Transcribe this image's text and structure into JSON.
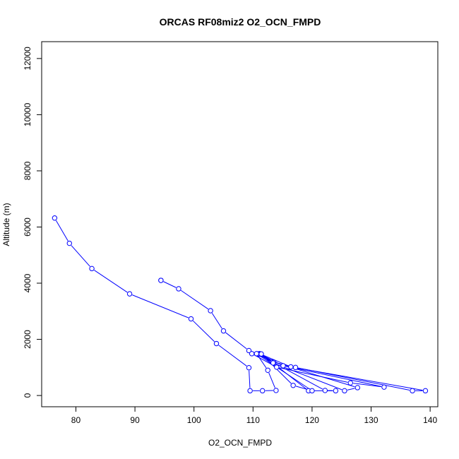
{
  "chart_data": {
    "type": "line",
    "title": "ORCAS RF08miz2 O2_OCN_FMPD",
    "xlabel": "O2_OCN_FMPD",
    "ylabel": "Altitude (m)",
    "xlim": [
      74.2,
      141.3
    ],
    "ylim": [
      -400,
      12600
    ],
    "xticks": [
      80,
      90,
      100,
      110,
      120,
      130,
      140
    ],
    "yticks": [
      0,
      2000,
      4000,
      6000,
      8000,
      10000,
      12000
    ],
    "grid": false,
    "legend": "none",
    "colors": {
      "series": "#0000ff",
      "axes": "#000000"
    },
    "series": [
      {
        "points": [
          [
            94.4,
            4100
          ],
          [
            94.4,
            4100
          ],
          [
            97.4,
            3800
          ],
          [
            102.8,
            3020
          ],
          [
            105.0,
            2300
          ],
          [
            109.3,
            1600
          ],
          [
            110.8,
            1480
          ],
          [
            113.3,
            1200
          ],
          [
            117.2,
            1000
          ],
          [
            137.0,
            170
          ],
          [
            139.2,
            170
          ],
          [
            116.4,
            1020
          ],
          [
            111.1,
            1490
          ],
          [
            109.8,
            1490
          ],
          [
            114.0,
            1010
          ],
          [
            126.5,
            450
          ],
          [
            132.2,
            300
          ],
          [
            115.1,
            1060
          ],
          [
            111.2,
            1470
          ],
          [
            113.5,
            1190
          ],
          [
            127.7,
            280
          ],
          [
            125.5,
            170
          ],
          [
            113.4,
            1160
          ],
          [
            110.8,
            1480
          ],
          [
            122.2,
            180
          ],
          [
            124.0,
            170
          ],
          [
            119.4,
            170
          ],
          [
            111.4,
            1480
          ],
          [
            116.8,
            360
          ],
          [
            120.0,
            170
          ],
          [
            110.6,
            1490
          ],
          [
            112.5,
            900
          ],
          [
            113.9,
            180
          ],
          [
            111.6,
            170
          ],
          [
            109.5,
            170
          ],
          [
            109.3,
            990
          ],
          [
            103.8,
            1850
          ],
          [
            99.5,
            2730
          ],
          [
            89.1,
            3620
          ],
          [
            82.7,
            4520
          ],
          [
            78.9,
            5420
          ],
          [
            76.4,
            6320
          ]
        ]
      }
    ]
  }
}
